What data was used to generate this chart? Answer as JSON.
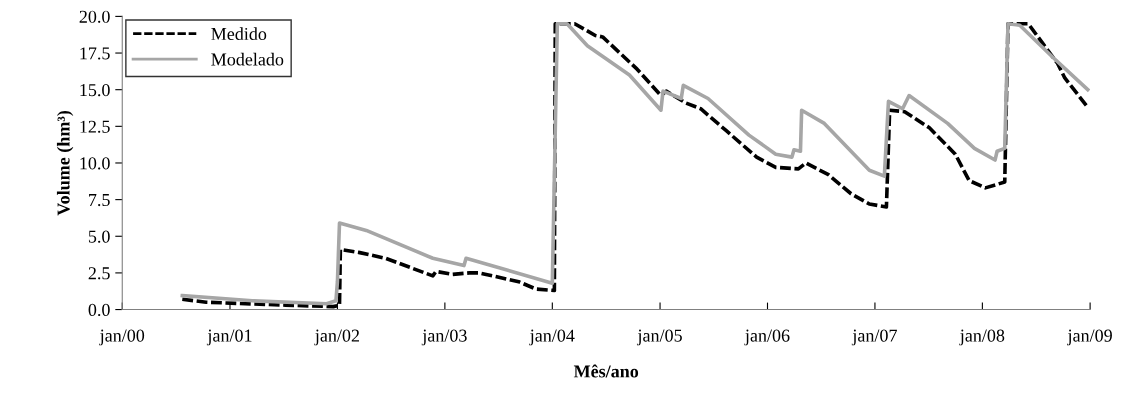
{
  "chart_data": {
    "type": "line",
    "xlabel": "Mês/ano",
    "ylabel": "Volume (hm³)",
    "xlim": [
      "2000-01-01",
      "2009-01-01"
    ],
    "xticks": [
      {
        "value": "2000-01-01",
        "label": "jan/00"
      },
      {
        "value": "2001-01-01",
        "label": "jan/01"
      },
      {
        "value": "2002-01-01",
        "label": "jan/02"
      },
      {
        "value": "2003-01-01",
        "label": "jan/03"
      },
      {
        "value": "2004-01-01",
        "label": "jan/04"
      },
      {
        "value": "2005-01-01",
        "label": "jan/05"
      },
      {
        "value": "2006-01-01",
        "label": "jan/06"
      },
      {
        "value": "2007-01-01",
        "label": "jan/07"
      },
      {
        "value": "2008-01-01",
        "label": "jan/08"
      },
      {
        "value": "2009-01-01",
        "label": "jan/09"
      }
    ],
    "ylim": [
      0,
      20
    ],
    "yticks": [
      {
        "value": 0,
        "label": "0.0"
      },
      {
        "value": 2.5,
        "label": "2.5"
      },
      {
        "value": 5,
        "label": "5.0"
      },
      {
        "value": 7.5,
        "label": "7.5"
      },
      {
        "value": 10,
        "label": "10.0"
      },
      {
        "value": 12.5,
        "label": "12.5"
      },
      {
        "value": 15,
        "label": "15.0"
      },
      {
        "value": 17.5,
        "label": "17.5"
      },
      {
        "value": 20,
        "label": "20.0"
      }
    ],
    "grid": false,
    "legend": "top left",
    "marker": "none",
    "series": [
      {
        "name": "Medido",
        "color": "#000000",
        "line_style": "dashed",
        "x": [
          "2000-07-23",
          "2000-10-12",
          "2001-07-09",
          "2001-12-18",
          "2002-01-08",
          "2002-01-11",
          "2002-03-14",
          "2002-06-13",
          "2002-11-21",
          "2002-12-02",
          "2003-01-26",
          "2003-03-25",
          "2003-04-27",
          "2003-09-09",
          "2003-11-06",
          "2004-01-08",
          "2004-01-11",
          "2004-03-17",
          "2004-05-26",
          "2004-06-20",
          "2004-10-15",
          "2005-01-04",
          "2005-01-22",
          "2005-03-29",
          "2005-05-19",
          "2005-08-14",
          "2005-11-25",
          "2006-01-29",
          "2006-04-16",
          "2006-05-11",
          "2006-07-27",
          "2006-10-12",
          "2006-12-13",
          "2007-02-09",
          "2007-02-20",
          "2007-04-12",
          "2007-07-05",
          "2007-10-01",
          "2007-11-17",
          "2008-01-11",
          "2008-03-17",
          "2008-03-28",
          "2008-06-05",
          "2008-09-12",
          "2008-10-07",
          "2008-12-24"
        ],
        "values": [
          0.7,
          0.5,
          0.3,
          0.2,
          0.3,
          4.1,
          3.9,
          3.5,
          2.3,
          2.6,
          2.4,
          2.5,
          2.5,
          1.9,
          1.4,
          1.3,
          19.5,
          19.5,
          18.7,
          18.6,
          16.4,
          14.6,
          14.9,
          14.1,
          13.7,
          12.2,
          10.4,
          9.7,
          9.6,
          10.0,
          9.2,
          7.9,
          7.2,
          7.0,
          13.6,
          13.5,
          12.4,
          10.6,
          8.8,
          8.3,
          8.7,
          19.5,
          19.5,
          16.8,
          15.8,
          13.8
        ]
      },
      {
        "name": "Modelado",
        "color": "#a6a6a6",
        "line_style": "solid",
        "x": [
          "2000-07-23",
          "2001-03-18",
          "2001-11-25",
          "2001-12-27",
          "2002-01-01",
          "2002-01-08",
          "2002-04-09",
          "2002-11-21",
          "2003-03-07",
          "2003-03-14",
          "2004-01-01",
          "2004-01-18",
          "2004-02-20",
          "2004-04-29",
          "2004-09-19",
          "2005-01-04",
          "2005-01-11",
          "2005-03-14",
          "2005-03-21",
          "2005-06-13",
          "2005-10-30",
          "2006-01-29",
          "2006-03-25",
          "2006-04-01",
          "2006-04-23",
          "2006-04-27",
          "2006-07-13",
          "2006-12-13",
          "2007-02-02",
          "2007-02-16",
          "2007-04-05",
          "2007-04-27",
          "2007-09-05",
          "2007-12-05",
          "2008-02-13",
          "2008-02-20",
          "2008-03-17",
          "2008-03-28",
          "2008-05-07",
          "2008-08-28",
          "2008-12-24"
        ],
        "values": [
          0.95,
          0.6,
          0.4,
          0.6,
          1.9,
          5.9,
          5.4,
          3.5,
          3.0,
          3.5,
          1.8,
          19.5,
          19.5,
          18.0,
          16.0,
          13.6,
          14.9,
          14.4,
          15.3,
          14.4,
          11.9,
          10.6,
          10.4,
          10.9,
          10.8,
          13.6,
          12.7,
          9.5,
          9.1,
          14.2,
          13.7,
          14.6,
          12.7,
          11.0,
          10.2,
          10.8,
          11.0,
          19.5,
          19.4,
          17.2,
          15.0
        ]
      }
    ]
  }
}
